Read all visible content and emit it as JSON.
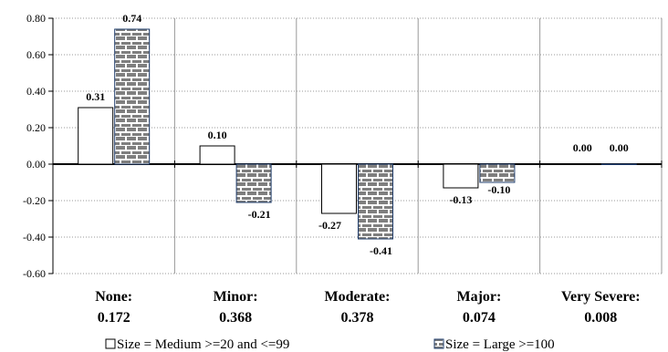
{
  "chart_data": {
    "type": "bar",
    "categories": [
      {
        "name": "None:",
        "value": "0.172"
      },
      {
        "name": "Minor:",
        "value": "0.368"
      },
      {
        "name": "Moderate:",
        "value": "0.378"
      },
      {
        "name": "Major:",
        "value": "0.074"
      },
      {
        "name": "Very Severe:",
        "value": "0.008"
      }
    ],
    "series": [
      {
        "name": "Size = Medium >=20 and <=99",
        "values": [
          0.31,
          0.1,
          -0.27,
          -0.13,
          0.0
        ],
        "labels": [
          "0.31",
          "0.10",
          "-0.27",
          "-0.13",
          "0.00"
        ],
        "color": "#ffffff",
        "pattern": "none"
      },
      {
        "name": "Size = Large >=100",
        "values": [
          0.74,
          -0.21,
          -0.41,
          -0.1,
          0.0
        ],
        "labels": [
          "0.74",
          "-0.21",
          "-0.41",
          "-0.10",
          "0.00"
        ],
        "color": "#7f7f7f",
        "pattern": "brick"
      }
    ],
    "yticks": [
      "0.80",
      "0.60",
      "0.40",
      "0.20",
      "0.00",
      "-0.20",
      "-0.40",
      "-0.60"
    ],
    "ylim": [
      -0.6,
      0.8
    ],
    "grid": "dotted horizontal gridlines, vertical category separators",
    "legend_position": "bottom"
  }
}
